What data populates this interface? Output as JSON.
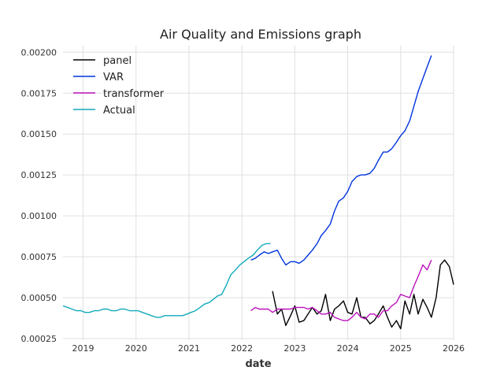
{
  "chart_data": {
    "type": "line",
    "title": "Air Quality and Emissions graph",
    "xlabel": "date",
    "ylabel": "",
    "xlim": [
      2018.62,
      2026.0
    ],
    "ylim": [
      0.00024,
      0.00204
    ],
    "x_ticks": [
      2019,
      2020,
      2021,
      2022,
      2023,
      2024,
      2025,
      2026
    ],
    "x_tick_labels": [
      "2019",
      "2020",
      "2021",
      "2022",
      "2023",
      "2024",
      "2025",
      "2026"
    ],
    "y_ticks": [
      0.00025,
      0.0005,
      0.00075,
      0.001,
      0.00125,
      0.0015,
      0.00175,
      0.002
    ],
    "y_tick_labels": [
      "0.00025",
      "0.00050",
      "0.00075",
      "0.00100",
      "0.00125",
      "0.00150",
      "0.00175",
      "0.00200"
    ],
    "grid": true,
    "legend_position": "top-left",
    "series": [
      {
        "name": "panel",
        "color": "#000000",
        "x": [
          2022.58,
          2022.67,
          2022.75,
          2022.83,
          2022.92,
          2023.0,
          2023.08,
          2023.17,
          2023.25,
          2023.33,
          2023.42,
          2023.5,
          2023.58,
          2023.67,
          2023.75,
          2023.83,
          2023.92,
          2024.0,
          2024.08,
          2024.17,
          2024.25,
          2024.33,
          2024.42,
          2024.5,
          2024.58,
          2024.67,
          2024.75,
          2024.83,
          2024.92,
          2025.0,
          2025.08,
          2025.17,
          2025.25,
          2025.33,
          2025.42,
          2025.5,
          2025.58,
          2025.67,
          2025.75,
          2025.83,
          2025.92,
          2026.0
        ],
        "values": [
          0.00054,
          0.0004,
          0.00043,
          0.00033,
          0.00039,
          0.00045,
          0.00035,
          0.00036,
          0.0004,
          0.00044,
          0.0004,
          0.00042,
          0.00052,
          0.00036,
          0.00043,
          0.00045,
          0.00048,
          0.00041,
          0.0004,
          0.0005,
          0.00038,
          0.00038,
          0.00034,
          0.00036,
          0.0004,
          0.00045,
          0.00038,
          0.00032,
          0.00036,
          0.00031,
          0.00048,
          0.0004,
          0.00052,
          0.0004,
          0.00049,
          0.00044,
          0.00038,
          0.0005,
          0.0007,
          0.00073,
          0.00069,
          0.00058
        ]
      },
      {
        "name": "VAR",
        "color": "#0033dd",
        "x": [
          2022.17,
          2022.25,
          2022.33,
          2022.42,
          2022.5,
          2022.58,
          2022.67,
          2022.75,
          2022.83,
          2022.92,
          2023.0,
          2023.08,
          2023.17,
          2023.25,
          2023.33,
          2023.42,
          2023.5,
          2023.58,
          2023.67,
          2023.75,
          2023.83,
          2023.92,
          2024.0,
          2024.08,
          2024.17,
          2024.25,
          2024.33,
          2024.42,
          2024.5,
          2024.58,
          2024.67,
          2024.75,
          2024.83,
          2024.92,
          2025.0,
          2025.08,
          2025.17,
          2025.25,
          2025.33,
          2025.42,
          2025.5,
          2025.58
        ],
        "values": [
          0.00073,
          0.00074,
          0.00076,
          0.00078,
          0.00077,
          0.00078,
          0.00079,
          0.00074,
          0.0007,
          0.00072,
          0.00072,
          0.00071,
          0.00073,
          0.00076,
          0.00079,
          0.00083,
          0.00088,
          0.00091,
          0.00095,
          0.00103,
          0.00109,
          0.00111,
          0.00115,
          0.00121,
          0.00124,
          0.00125,
          0.00125,
          0.00126,
          0.00129,
          0.00134,
          0.00139,
          0.00139,
          0.00141,
          0.00145,
          0.00149,
          0.00152,
          0.00158,
          0.00167,
          0.00176,
          0.00184,
          0.00191,
          0.00198
        ]
      },
      {
        "name": "transformer",
        "color": "#bb11bb",
        "x": [
          2022.17,
          2022.25,
          2022.33,
          2022.42,
          2022.5,
          2022.58,
          2022.67,
          2022.75,
          2022.83,
          2022.92,
          2023.0,
          2023.08,
          2023.17,
          2023.25,
          2023.33,
          2023.42,
          2023.5,
          2023.58,
          2023.67,
          2023.75,
          2023.83,
          2023.92,
          2024.0,
          2024.08,
          2024.17,
          2024.25,
          2024.33,
          2024.42,
          2024.5,
          2024.58,
          2024.67,
          2024.75,
          2024.83,
          2024.92,
          2025.0,
          2025.08,
          2025.17,
          2025.25,
          2025.33,
          2025.42,
          2025.5,
          2025.58
        ],
        "values": [
          0.00042,
          0.00044,
          0.00043,
          0.00043,
          0.00043,
          0.00041,
          0.00043,
          0.00043,
          0.00043,
          0.00043,
          0.00044,
          0.00044,
          0.00044,
          0.00043,
          0.00044,
          0.00042,
          0.0004,
          0.0004,
          0.00041,
          0.00038,
          0.00037,
          0.00036,
          0.00036,
          0.00038,
          0.00041,
          0.00038,
          0.00037,
          0.0004,
          0.0004,
          0.00038,
          0.00042,
          0.00042,
          0.00045,
          0.00047,
          0.00052,
          0.00051,
          0.0005,
          0.00057,
          0.00063,
          0.0007,
          0.00067,
          0.00073
        ]
      },
      {
        "name": "Actual",
        "color": "#11aabb",
        "x": [
          2018.62,
          2018.71,
          2018.79,
          2018.88,
          2018.96,
          2019.04,
          2019.12,
          2019.21,
          2019.29,
          2019.38,
          2019.46,
          2019.54,
          2019.62,
          2019.71,
          2019.79,
          2019.88,
          2019.96,
          2020.04,
          2020.12,
          2020.21,
          2020.29,
          2020.38,
          2020.46,
          2020.54,
          2020.62,
          2020.71,
          2020.79,
          2020.88,
          2020.96,
          2021.04,
          2021.12,
          2021.21,
          2021.29,
          2021.38,
          2021.46,
          2021.54,
          2021.62,
          2021.71,
          2021.79,
          2021.88,
          2021.96,
          2022.04,
          2022.12,
          2022.21,
          2022.29,
          2022.38,
          2022.46,
          2022.54
        ],
        "values": [
          0.00045,
          0.00044,
          0.00043,
          0.00042,
          0.00042,
          0.00041,
          0.00041,
          0.00042,
          0.00042,
          0.00043,
          0.00043,
          0.00042,
          0.00042,
          0.00043,
          0.00043,
          0.00042,
          0.00042,
          0.00042,
          0.00041,
          0.0004,
          0.00039,
          0.00038,
          0.00038,
          0.00039,
          0.00039,
          0.00039,
          0.00039,
          0.00039,
          0.0004,
          0.00041,
          0.00042,
          0.00044,
          0.00046,
          0.00047,
          0.00049,
          0.00051,
          0.00052,
          0.00058,
          0.00064,
          0.00067,
          0.0007,
          0.00072,
          0.00074,
          0.00076,
          0.00079,
          0.00082,
          0.00083,
          0.00083
        ]
      }
    ]
  }
}
